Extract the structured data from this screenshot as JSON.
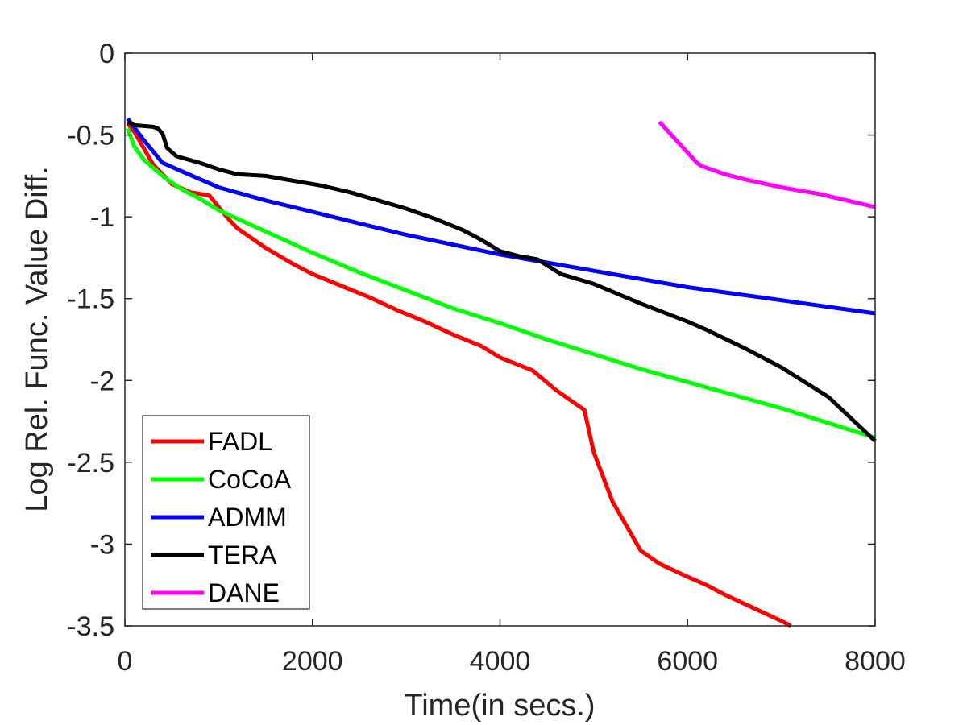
{
  "chart_data": {
    "type": "line",
    "xlabel": "Time(in secs.)",
    "ylabel": "Log Rel. Func. Value Diff.",
    "xlim": [
      0,
      8000
    ],
    "ylim": [
      -3.5,
      0
    ],
    "xticks": [
      0,
      2000,
      4000,
      6000,
      8000
    ],
    "xtick_labels": [
      "0",
      "2000",
      "4000",
      "6000",
      "8000"
    ],
    "yticks": [
      0,
      -0.5,
      -1,
      -1.5,
      -2,
      -2.5,
      -3,
      -3.5
    ],
    "ytick_labels": [
      "0",
      "-0.5",
      "-1",
      "-1.5",
      "-2",
      "-2.5",
      "-3",
      "-3.5"
    ],
    "grid": false,
    "legend_position": "bottom-left",
    "series": [
      {
        "name": "FADL",
        "color": "#ff0000",
        "x": [
          30,
          100,
          200,
          300,
          400,
          500,
          700,
          900,
          1100,
          1200,
          1500,
          1800,
          2000,
          2300,
          2600,
          2900,
          3200,
          3500,
          3800,
          4000,
          4350,
          4600,
          4900,
          5000,
          5200,
          5500,
          5700,
          6000,
          6200,
          6400,
          6700,
          7000,
          7100
        ],
        "y": [
          -0.43,
          -0.48,
          -0.58,
          -0.68,
          -0.74,
          -0.8,
          -0.85,
          -0.87,
          -1.01,
          -1.07,
          -1.19,
          -1.29,
          -1.35,
          -1.42,
          -1.49,
          -1.57,
          -1.64,
          -1.72,
          -1.79,
          -1.86,
          -1.94,
          -2.06,
          -2.18,
          -2.44,
          -2.74,
          -3.04,
          -3.12,
          -3.2,
          -3.25,
          -3.31,
          -3.39,
          -3.47,
          -3.5
        ]
      },
      {
        "name": "CoCoA",
        "color": "#00ff00",
        "x": [
          30,
          100,
          200,
          400,
          600,
          800,
          1000,
          1500,
          2000,
          2500,
          3000,
          3500,
          4000,
          4500,
          5000,
          5500,
          6000,
          6500,
          7000,
          7500,
          8000
        ],
        "y": [
          -0.46,
          -0.57,
          -0.65,
          -0.75,
          -0.83,
          -0.89,
          -0.96,
          -1.09,
          -1.22,
          -1.34,
          -1.45,
          -1.56,
          -1.65,
          -1.75,
          -1.84,
          -1.93,
          -2.01,
          -2.09,
          -2.17,
          -2.26,
          -2.35
        ]
      },
      {
        "name": "ADMM",
        "color": "#0000ff",
        "x": [
          30,
          200,
          400,
          600,
          800,
          1000,
          1500,
          2000,
          2500,
          3000,
          3500,
          4000,
          4500,
          5000,
          5500,
          6000,
          6500,
          7000,
          7500,
          8000
        ],
        "y": [
          -0.4,
          -0.53,
          -0.67,
          -0.72,
          -0.77,
          -0.82,
          -0.9,
          -0.97,
          -1.04,
          -1.11,
          -1.17,
          -1.23,
          -1.28,
          -1.33,
          -1.38,
          -1.43,
          -1.47,
          -1.51,
          -1.55,
          -1.59
        ]
      },
      {
        "name": "TERA",
        "color": "#000000",
        "x": [
          30,
          100,
          300,
          350,
          400,
          450,
          550,
          800,
          1000,
          1200,
          1500,
          1800,
          2100,
          2400,
          2700,
          3000,
          3300,
          3600,
          3800,
          4000,
          4200,
          4400,
          4650,
          5000,
          5500,
          6000,
          6200,
          6600,
          7000,
          7500,
          8000
        ],
        "y": [
          -0.42,
          -0.44,
          -0.45,
          -0.46,
          -0.49,
          -0.58,
          -0.63,
          -0.67,
          -0.71,
          -0.74,
          -0.75,
          -0.78,
          -0.81,
          -0.85,
          -0.9,
          -0.95,
          -1.01,
          -1.08,
          -1.14,
          -1.21,
          -1.24,
          -1.26,
          -1.35,
          -1.41,
          -1.53,
          -1.64,
          -1.69,
          -1.8,
          -1.92,
          -2.1,
          -2.37
        ]
      },
      {
        "name": "DANE",
        "color": "#ff00ff",
        "x": [
          5700,
          6100,
          6150,
          6400,
          6600,
          7000,
          7400,
          8000
        ],
        "y": [
          -0.42,
          -0.67,
          -0.69,
          -0.74,
          -0.77,
          -0.82,
          -0.86,
          -0.94
        ]
      }
    ]
  }
}
